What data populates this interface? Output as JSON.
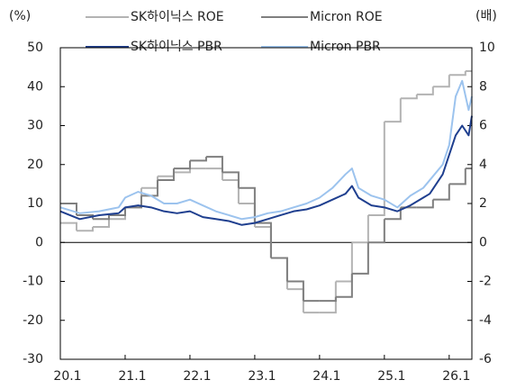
{
  "chart_data": {
    "type": "line",
    "y_label": "(%)",
    "y2_label": "(배)",
    "xlim": [
      2020,
      2026.35
    ],
    "xticks": [
      {
        "value": 2020,
        "label": "20.1"
      },
      {
        "value": 2021,
        "label": "21.1"
      },
      {
        "value": 2022,
        "label": "22.1"
      },
      {
        "value": 2023,
        "label": "23.1"
      },
      {
        "value": 2024,
        "label": "24.1"
      },
      {
        "value": 2025,
        "label": "25.1"
      },
      {
        "value": 2026,
        "label": "26.1"
      }
    ],
    "ylim": [
      -30,
      50
    ],
    "yticks": [
      -30,
      -20,
      -10,
      0,
      10,
      20,
      30,
      40,
      50
    ],
    "y2lim": [
      -6,
      10
    ],
    "y2ticks": [
      -6,
      -4,
      -2,
      0,
      2,
      4,
      6,
      8,
      10
    ],
    "series": [
      {
        "name": "SK하이닉스 ROE",
        "color": "#b3b3b3",
        "step": true,
        "axis": "y",
        "x": [
          2020,
          2020.25,
          2020.5,
          2020.75,
          2021,
          2021.25,
          2021.5,
          2021.75,
          2022,
          2022.25,
          2022.5,
          2022.75,
          2023,
          2023.25,
          2023.5,
          2023.75,
          2024,
          2024.25,
          2024.5,
          2024.75,
          2025,
          2025.25,
          2025.5,
          2025.75,
          2026,
          2026.25
        ],
        "values": [
          5,
          3,
          4,
          6,
          9,
          14,
          17,
          18,
          19,
          19,
          16,
          10,
          4,
          -4,
          -12,
          -18,
          -18,
          -10,
          0,
          7,
          31,
          37,
          38,
          40,
          43,
          44
        ]
      },
      {
        "name": "Micron ROE",
        "color": "#7f7f7f",
        "step": true,
        "axis": "y",
        "x": [
          2020,
          2020.25,
          2020.5,
          2020.75,
          2021,
          2021.25,
          2021.5,
          2021.75,
          2022,
          2022.25,
          2022.5,
          2022.75,
          2023,
          2023.25,
          2023.5,
          2023.75,
          2024,
          2024.25,
          2024.5,
          2024.75,
          2025,
          2025.25,
          2025.5,
          2025.75,
          2026,
          2026.25
        ],
        "values": [
          10,
          7,
          6,
          7,
          9,
          12,
          16,
          19,
          21,
          22,
          18,
          14,
          5,
          -4,
          -10,
          -15,
          -15,
          -14,
          -8,
          0,
          6,
          9,
          9,
          11,
          15,
          19
        ]
      },
      {
        "name": "SK하이닉스 PBR",
        "color": "#1f3f8f",
        "step": false,
        "axis": "y2",
        "x": [
          2020,
          2020.3,
          2020.6,
          2020.9,
          2021,
          2021.2,
          2021.4,
          2021.6,
          2021.8,
          2022,
          2022.2,
          2022.4,
          2022.6,
          2022.8,
          2023,
          2023.2,
          2023.4,
          2023.6,
          2023.8,
          2024,
          2024.2,
          2024.4,
          2024.5,
          2024.6,
          2024.8,
          2025,
          2025.2,
          2025.4,
          2025.6,
          2025.7,
          2025.9,
          2026,
          2026.1,
          2026.2,
          2026.3,
          2026.35
        ],
        "values": [
          1.6,
          1.2,
          1.4,
          1.5,
          1.8,
          1.9,
          1.8,
          1.6,
          1.5,
          1.6,
          1.3,
          1.2,
          1.1,
          0.9,
          1.0,
          1.2,
          1.4,
          1.6,
          1.7,
          1.9,
          2.2,
          2.5,
          2.9,
          2.3,
          1.9,
          1.8,
          1.6,
          1.9,
          2.3,
          2.5,
          3.5,
          4.5,
          5.5,
          6.0,
          5.5,
          6.5
        ]
      },
      {
        "name": "Micron PBR",
        "color": "#9cc3ee",
        "step": false,
        "axis": "y2",
        "x": [
          2020,
          2020.3,
          2020.6,
          2020.9,
          2021,
          2021.2,
          2021.4,
          2021.6,
          2021.8,
          2022,
          2022.2,
          2022.4,
          2022.6,
          2022.8,
          2023,
          2023.2,
          2023.4,
          2023.6,
          2023.8,
          2024,
          2024.2,
          2024.4,
          2024.5,
          2024.6,
          2024.8,
          2025,
          2025.2,
          2025.4,
          2025.6,
          2025.7,
          2025.9,
          2026,
          2026.1,
          2026.2,
          2026.3,
          2026.35
        ],
        "values": [
          1.8,
          1.5,
          1.6,
          1.8,
          2.3,
          2.6,
          2.4,
          2.0,
          2.0,
          2.2,
          1.9,
          1.6,
          1.4,
          1.2,
          1.3,
          1.5,
          1.6,
          1.8,
          2.0,
          2.3,
          2.8,
          3.5,
          3.8,
          2.8,
          2.4,
          2.2,
          1.8,
          2.4,
          2.8,
          3.2,
          4.0,
          5.0,
          7.5,
          8.3,
          6.8,
          7.5
        ]
      }
    ]
  }
}
